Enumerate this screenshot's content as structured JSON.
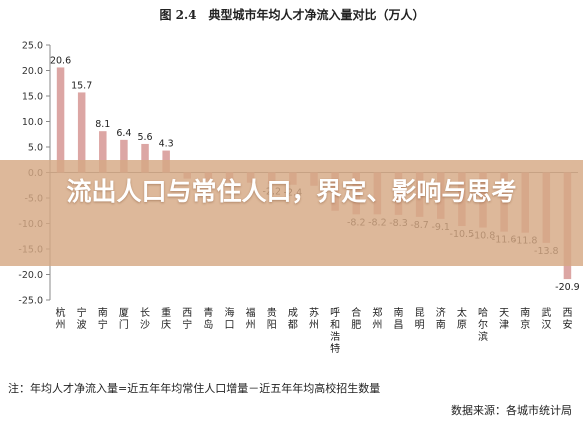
{
  "chart_data": {
    "type": "bar",
    "title": "图 2.4　典型城市年均人才净流入量对比（万人）",
    "categories": [
      "杭州",
      "宁波",
      "南宁",
      "厦门",
      "长沙",
      "重庆",
      "西宁",
      "青岛",
      "海口",
      "福州",
      "贵阳",
      "成都",
      "苏州",
      "呼和浩特",
      "合肥",
      "郑州",
      "南昌",
      "昆明",
      "济南",
      "太原",
      "哈尔滨",
      "天津",
      "南京",
      "武汉",
      "西安"
    ],
    "values": [
      20.6,
      15.7,
      8.1,
      6.4,
      5.6,
      4.3,
      -1.2,
      -1.6,
      -1.8,
      -2.0,
      -2.2,
      -2.4,
      -2.6,
      -7.5,
      -8.2,
      -8.2,
      -8.3,
      -8.7,
      -9.1,
      -10.5,
      -10.8,
      -11.6,
      -11.8,
      -13.8,
      -20.9
    ],
    "value_labels": [
      "20.6",
      "15.7",
      "8.1",
      "6.4",
      "5.6",
      "4.3",
      "",
      "",
      "",
      "",
      "-2.2",
      "-2.4",
      "",
      "",
      "-8.2",
      "-8.2",
      "-8.3",
      "-8.7",
      "-9.1",
      "-10.5",
      "-10.8",
      "-11.6",
      "-11.8",
      "-13.8",
      "-20.9"
    ],
    "yticks": [
      "25.0",
      "20.0",
      "15.0",
      "10.0",
      "5.0",
      "0.0",
      "-5.0",
      "-10.0",
      "-15.0",
      "-20.0",
      "-25.0"
    ],
    "ylim": [
      -25,
      25
    ],
    "grid": false,
    "bar_color": "#dca6a4",
    "note": "注：年均人才净流入量=近五年年均常住人口增量－近五年年均高校招生数量",
    "source": "数据来源：各城市统计局"
  },
  "overlay": {
    "title": "流出人口与常住人口，界定、影响与思考",
    "color": "#d6a884"
  }
}
